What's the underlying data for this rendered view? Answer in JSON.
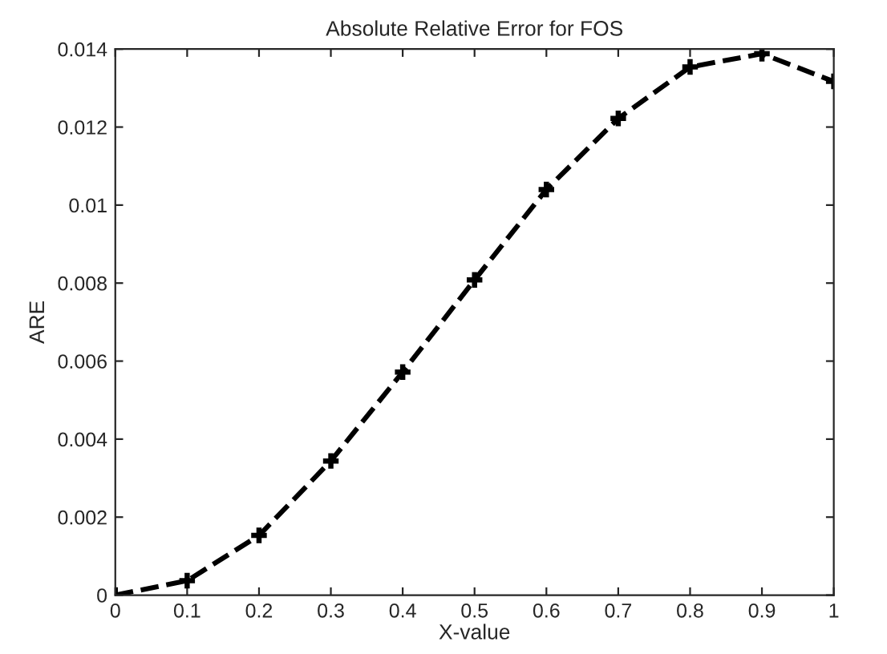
{
  "chart_data": {
    "type": "line",
    "title": "Absolute Relative Error for FOS",
    "xlabel": "X-value",
    "ylabel": "ARE",
    "x": [
      0,
      0.1,
      0.2,
      0.3,
      0.4,
      0.5,
      0.6,
      0.7,
      0.8,
      0.9,
      1
    ],
    "series": [
      {
        "color": "#000000",
        "values": [
          0,
          0.00037,
          0.00153,
          0.00344,
          0.00572,
          0.00808,
          0.0104,
          0.01222,
          0.01354,
          0.01388,
          0.01317
        ]
      }
    ],
    "xlim": [
      0,
      1
    ],
    "xticks": [
      0,
      0.1,
      0.2,
      0.3,
      0.4,
      0.5,
      0.6,
      0.7,
      0.8,
      0.9,
      1
    ],
    "ylim": [
      0,
      0.014
    ],
    "yticks": [
      0,
      0.002,
      0.004,
      0.006,
      0.008,
      0.01,
      0.012,
      0.014
    ],
    "grid": false,
    "legend": false,
    "marker": "cross",
    "line_style": "dashed"
  }
}
